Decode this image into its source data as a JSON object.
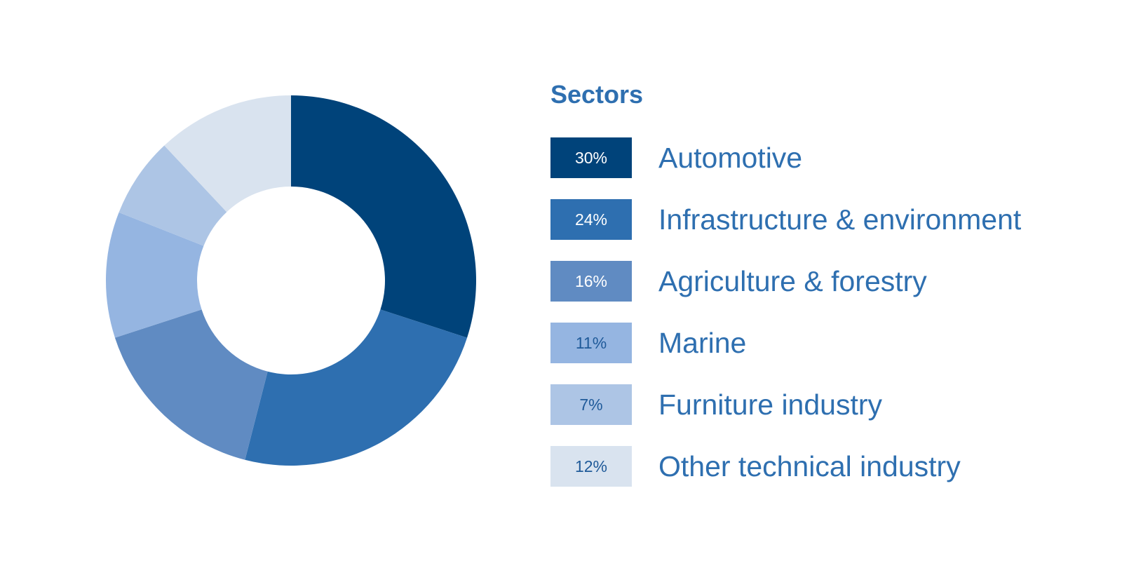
{
  "chart_data": {
    "type": "pie",
    "title": "Sectors",
    "categories": [
      "Automotive",
      "Infrastructure & environment",
      "Agriculture & forestry",
      "Marine",
      "Furniture industry",
      "Other technical industry"
    ],
    "values": [
      30,
      24,
      16,
      11,
      7,
      12
    ],
    "value_labels": [
      "30%",
      "24%",
      "16%",
      "11%",
      "7%",
      "12%"
    ],
    "units": "%",
    "donut": true,
    "legend_position": "right",
    "colors": [
      "#00437a",
      "#2e6fb0",
      "#608bc2",
      "#95b5e1",
      "#adc5e5",
      "#d9e3ef"
    ],
    "label_colors": [
      "#ffffff",
      "#ffffff",
      "#ffffff",
      "#1f5a99",
      "#1f5a99",
      "#1f5a99"
    ]
  }
}
